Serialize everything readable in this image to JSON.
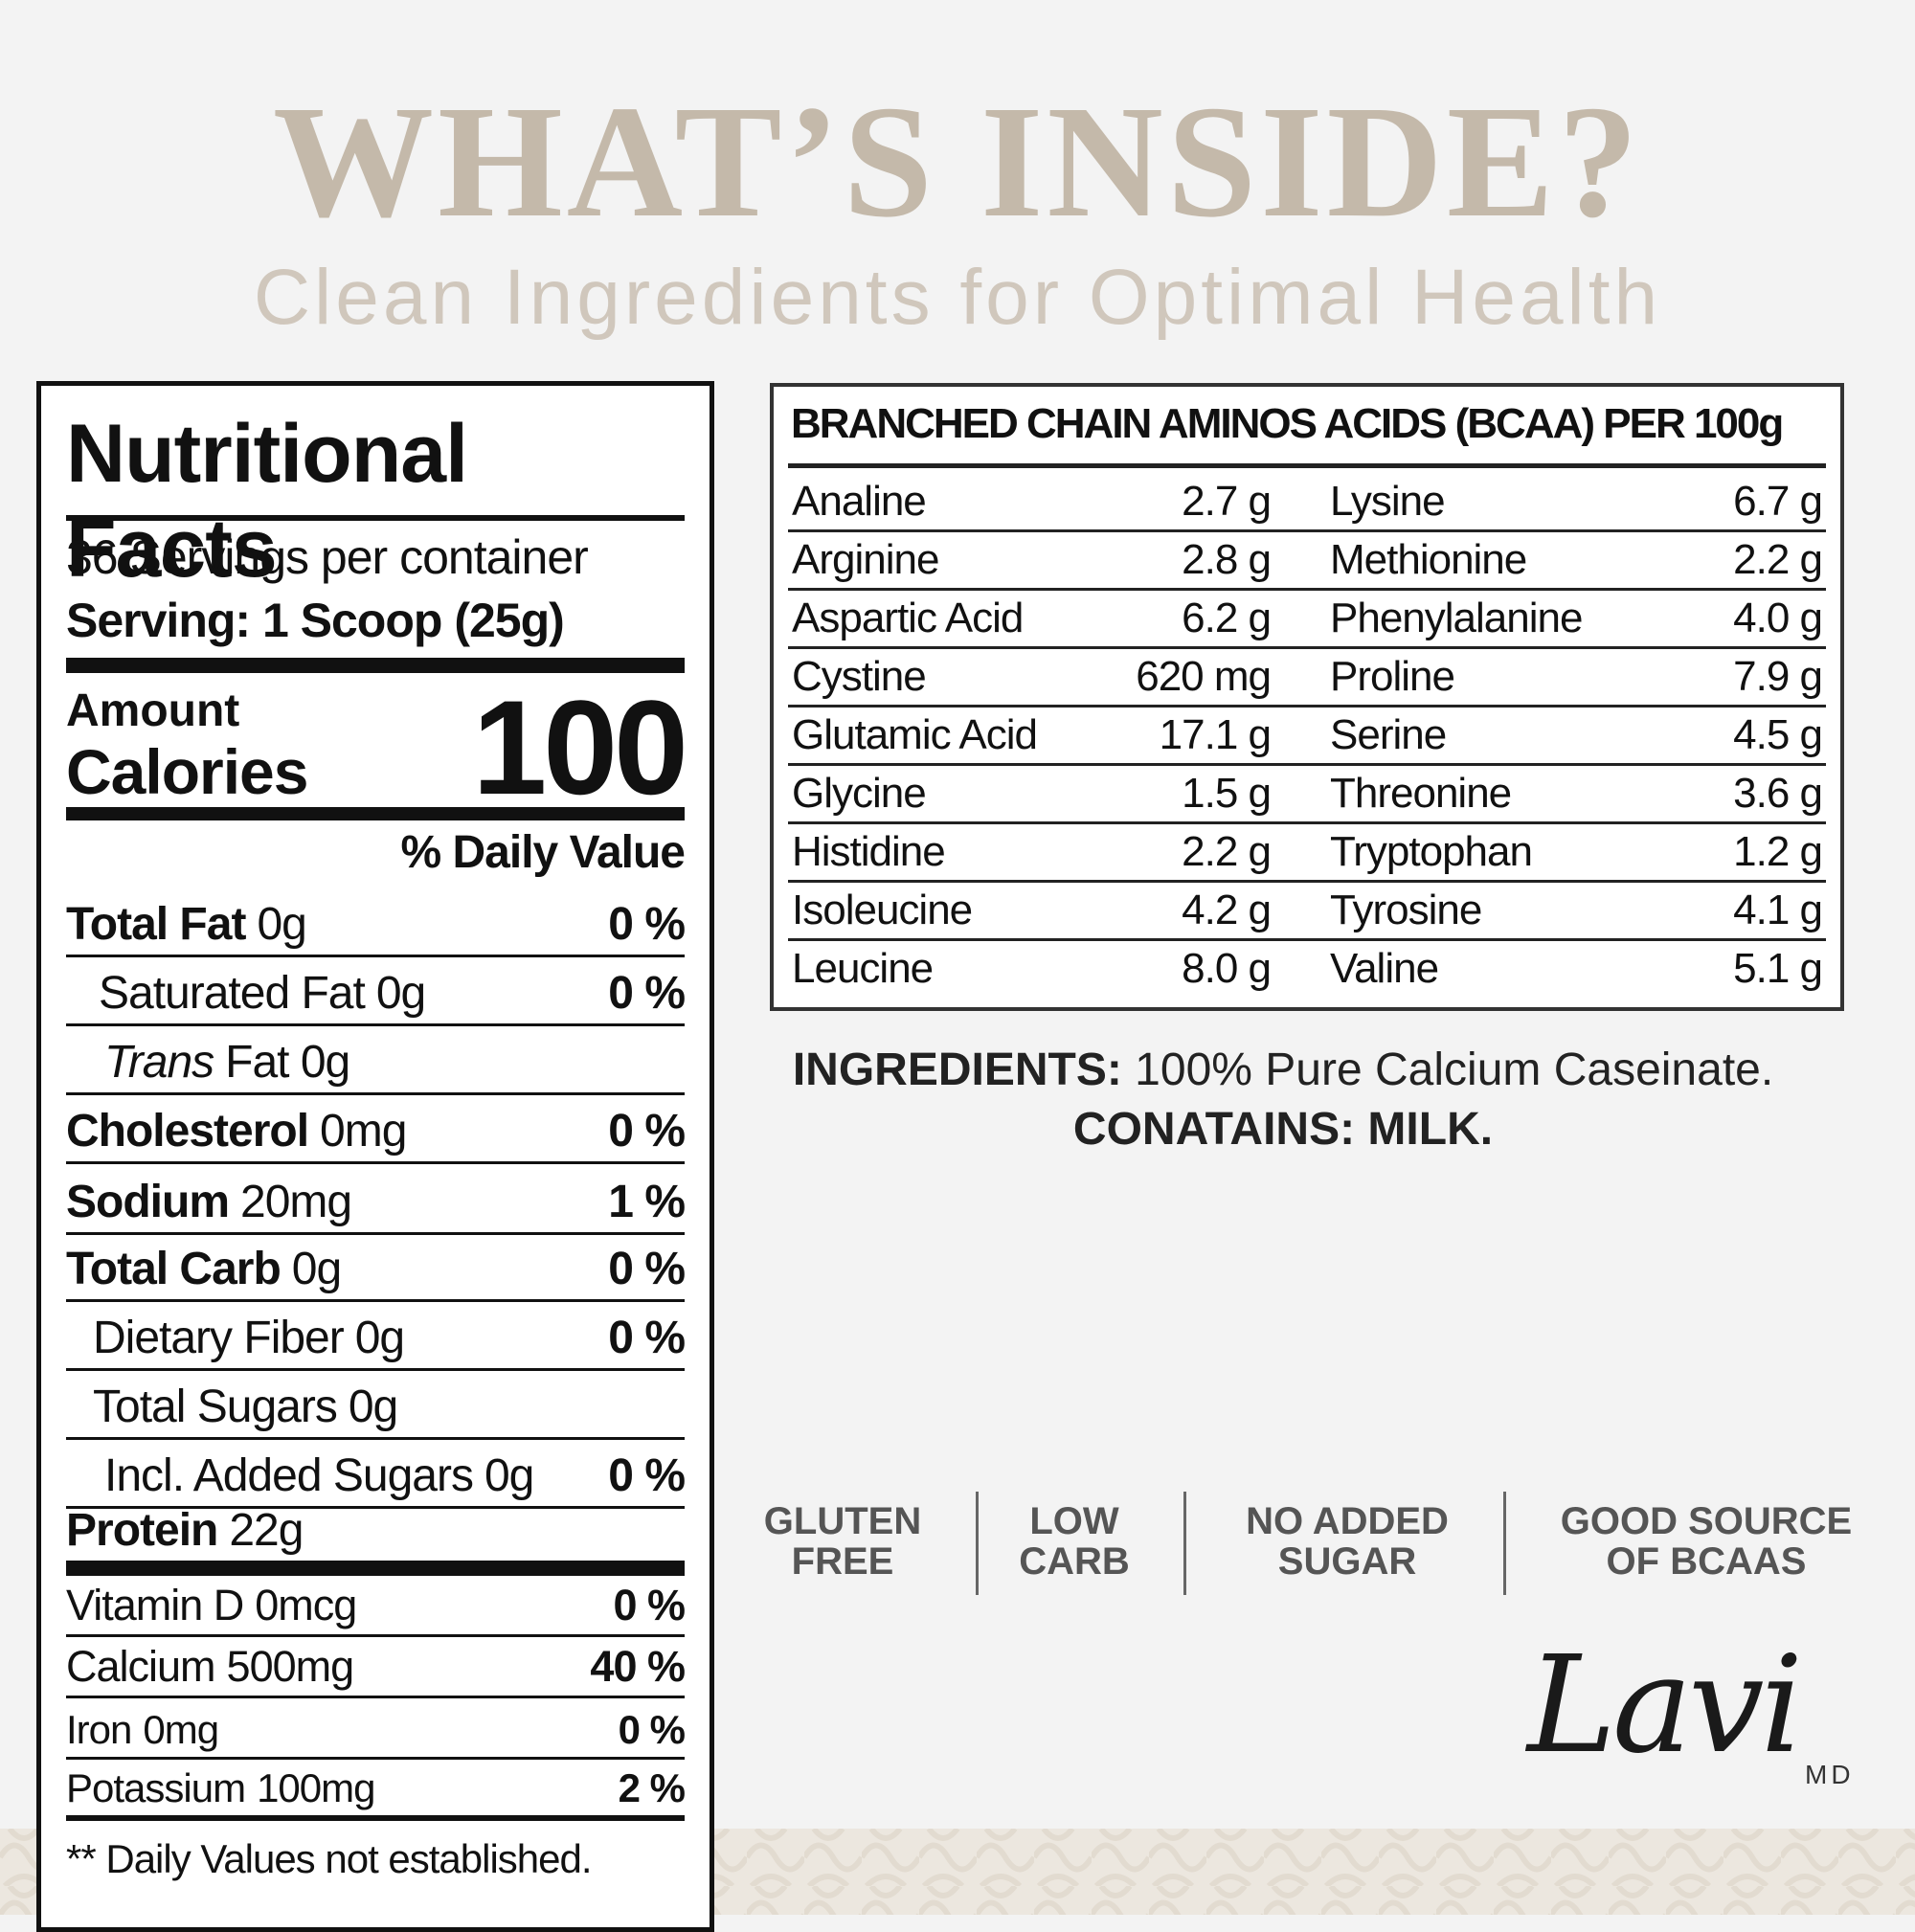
{
  "header": {
    "title": "WHAT’S INSIDE?",
    "subtitle": "Clean Ingredients for Optimal Health"
  },
  "nutrition": {
    "title": "Nutritional Facts",
    "servings": "36 Servings per container",
    "serving": "Serving: 1 Scoop (25g)",
    "amount": "Amount",
    "calories_label": "Calories",
    "calories": "100",
    "dv_header": "% Daily Value",
    "rows": [
      {
        "name": "Total Fat",
        "amount": "0g",
        "dv": "0 %"
      },
      {
        "name": "Saturated Fat",
        "amount": "0g",
        "dv": "0 %"
      },
      {
        "name": "Trans",
        "amount": "Fat 0g"
      },
      {
        "name": "Cholesterol",
        "amount": "0mg",
        "dv": "0 %"
      },
      {
        "name": "Sodium",
        "amount": "20mg",
        "dv": "1 %"
      },
      {
        "name": "Total Carb",
        "amount": "0g",
        "dv": "0 %"
      },
      {
        "name": "Dietary Fiber",
        "amount": "0g",
        "dv": "0 %"
      },
      {
        "name": "Total Sugars",
        "amount": "0g"
      },
      {
        "name": "Incl. Added Sugars",
        "amount": "0g",
        "dv": "0 %"
      },
      {
        "name": "Protein",
        "amount": "22g"
      },
      {
        "name": "Vitamin D",
        "amount": "0mcg",
        "dv": "0 %"
      },
      {
        "name": "Calcium",
        "amount": "500mg",
        "dv": "40 %"
      },
      {
        "name": "Iron",
        "amount": "0mg",
        "dv": "0 %"
      },
      {
        "name": "Potassium",
        "amount": "100mg",
        "dv": "2 %"
      }
    ],
    "footnote": "** Daily Values not established."
  },
  "bcaa": {
    "title": "BRANCHED CHAIN AMINOS ACIDS (BCAA) PER 100g",
    "rows": [
      [
        [
          "Analine",
          "2.7 g"
        ],
        [
          "Lysine",
          "6.7 g"
        ]
      ],
      [
        [
          "Arginine",
          "2.8 g"
        ],
        [
          "Methionine",
          "2.2 g"
        ]
      ],
      [
        [
          "Aspartic Acid",
          "6.2 g"
        ],
        [
          "Phenylalanine",
          "4.0 g"
        ]
      ],
      [
        [
          "Cystine",
          "620 mg"
        ],
        [
          "Proline",
          "7.9 g"
        ]
      ],
      [
        [
          "Glutamic Acid",
          "17.1 g"
        ],
        [
          "Serine",
          "4.5 g"
        ]
      ],
      [
        [
          "Glycine",
          "1.5 g"
        ],
        [
          "Threonine",
          "3.6 g"
        ]
      ],
      [
        [
          "Histidine",
          "2.2 g"
        ],
        [
          "Tryptophan",
          "1.2 g"
        ]
      ],
      [
        [
          "Isoleucine",
          "4.2 g"
        ],
        [
          "Tyrosine",
          "4.1 g"
        ]
      ],
      [
        [
          "Leucine",
          "8.0 g"
        ],
        [
          "Valine",
          "5.1 g"
        ]
      ]
    ]
  },
  "ingredients": {
    "label": "INGREDIENTS:",
    "text": "100% Pure Calcium Caseinate.",
    "contains": "CONATAINS: MILK."
  },
  "badges": [
    [
      "GLUTEN",
      "FREE"
    ],
    [
      "LOW",
      "CARB"
    ],
    [
      "NO ADDED",
      "SUGAR"
    ],
    [
      "GOOD SOURCE",
      "OF BCAAS"
    ]
  ],
  "logo": {
    "name": "Lavi",
    "suffix": "MD"
  }
}
